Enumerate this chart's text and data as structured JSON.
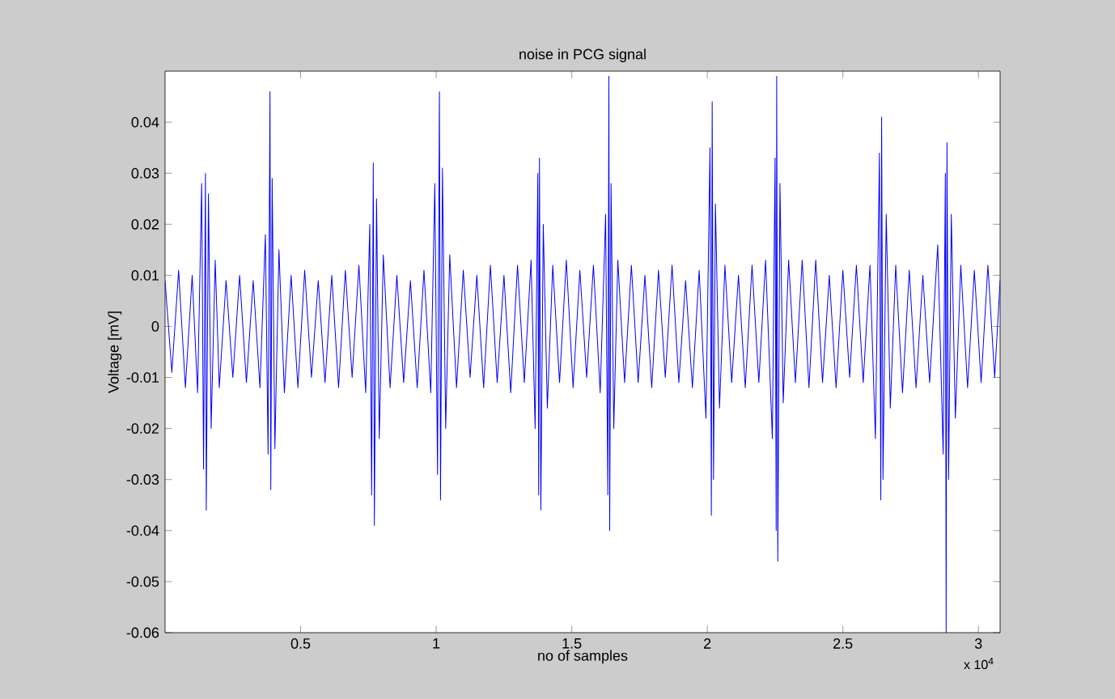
{
  "chart_data": {
    "type": "line",
    "title": "noise in PCG signal",
    "xlabel": "no of samples",
    "ylabel": "Voltage [mV]",
    "annotations": [
      "x 10$^{4}$"
    ],
    "xlim": [
      0,
      3.08
    ],
    "ylim": [
      -0.06,
      0.05
    ],
    "xticks": [
      0.5,
      1,
      1.5,
      2,
      2.5,
      3
    ],
    "yticks": [
      -0.06,
      -0.05,
      -0.04,
      -0.03,
      -0.02,
      -0.01,
      0,
      0.01,
      0.02,
      0.03,
      0.04
    ],
    "series": [
      {
        "color": "#0000ff",
        "x": [
          0,
          0.025,
          0.05,
          0.075,
          0.1,
          0.12,
          0.135,
          0.142,
          0.149,
          0.152,
          0.16,
          0.17,
          0.185,
          0.2,
          0.225,
          0.25,
          0.275,
          0.3,
          0.325,
          0.35,
          0.37,
          0.38,
          0.387,
          0.39,
          0.395,
          0.405,
          0.42,
          0.44,
          0.465,
          0.49,
          0.515,
          0.54,
          0.565,
          0.59,
          0.615,
          0.64,
          0.665,
          0.69,
          0.715,
          0.74,
          0.755,
          0.762,
          0.768,
          0.772,
          0.78,
          0.79,
          0.805,
          0.83,
          0.855,
          0.88,
          0.905,
          0.93,
          0.955,
          0.98,
          0.995,
          1.005,
          1.012,
          1.016,
          1.023,
          1.035,
          1.05,
          1.075,
          1.1,
          1.125,
          1.15,
          1.175,
          1.2,
          1.225,
          1.25,
          1.275,
          1.3,
          1.325,
          1.35,
          1.365,
          1.375,
          1.378,
          1.381,
          1.386,
          1.395,
          1.41,
          1.43,
          1.455,
          1.48,
          1.505,
          1.53,
          1.555,
          1.58,
          1.605,
          1.625,
          1.633,
          1.637,
          1.64,
          1.645,
          1.655,
          1.67,
          1.695,
          1.72,
          1.745,
          1.77,
          1.795,
          1.82,
          1.845,
          1.87,
          1.895,
          1.92,
          1.945,
          1.97,
          1.995,
          2.01,
          2.015,
          2.018,
          2.023,
          2.03,
          2.045,
          2.065,
          2.09,
          2.115,
          2.14,
          2.165,
          2.19,
          2.215,
          2.24,
          2.25,
          2.254,
          2.256,
          2.26,
          2.268,
          2.28,
          2.3,
          2.325,
          2.35,
          2.375,
          2.4,
          2.425,
          2.45,
          2.475,
          2.5,
          2.525,
          2.55,
          2.575,
          2.6,
          2.62,
          2.635,
          2.64,
          2.643,
          2.648,
          2.66,
          2.675,
          2.695,
          2.72,
          2.745,
          2.77,
          2.795,
          2.82,
          2.85,
          2.87,
          2.878,
          2.881,
          2.884,
          2.89,
          2.9,
          2.915,
          2.935,
          2.96,
          2.985,
          3.01,
          3.035,
          3.06,
          3.08
        ],
        "values": [
          0.009,
          -0.009,
          0.011,
          -0.012,
          0.01,
          -0.013,
          0.028,
          -0.028,
          0.03,
          -0.036,
          0.026,
          -0.02,
          0.013,
          -0.012,
          0.009,
          -0.01,
          0.01,
          -0.011,
          0.009,
          -0.012,
          0.018,
          -0.025,
          0.046,
          -0.032,
          0.029,
          -0.024,
          0.015,
          -0.013,
          0.01,
          -0.012,
          0.011,
          -0.01,
          0.009,
          -0.011,
          0.01,
          -0.012,
          0.011,
          -0.01,
          0.012,
          -0.013,
          0.02,
          -0.033,
          0.032,
          -0.039,
          0.025,
          -0.022,
          0.014,
          -0.012,
          0.01,
          -0.011,
          0.009,
          -0.012,
          0.011,
          -0.013,
          0.028,
          -0.029,
          0.046,
          -0.034,
          0.031,
          -0.02,
          0.014,
          -0.012,
          0.011,
          -0.01,
          0.01,
          -0.012,
          0.012,
          -0.011,
          0.01,
          -0.013,
          0.012,
          -0.011,
          0.013,
          -0.02,
          0.03,
          -0.033,
          0.033,
          -0.036,
          0.02,
          -0.016,
          0.012,
          -0.011,
          0.013,
          -0.012,
          0.011,
          -0.01,
          0.012,
          -0.013,
          0.022,
          -0.033,
          0.049,
          -0.04,
          0.028,
          -0.02,
          0.013,
          -0.011,
          0.012,
          -0.011,
          0.01,
          -0.012,
          0.011,
          -0.01,
          0.012,
          -0.011,
          0.009,
          -0.012,
          0.011,
          -0.018,
          0.035,
          -0.037,
          0.044,
          -0.03,
          0.024,
          -0.016,
          0.012,
          -0.011,
          0.01,
          -0.012,
          0.012,
          -0.011,
          0.013,
          -0.022,
          0.033,
          -0.04,
          0.049,
          -0.046,
          0.028,
          -0.015,
          0.013,
          -0.011,
          0.013,
          -0.012,
          0.013,
          -0.011,
          0.01,
          -0.012,
          0.011,
          -0.01,
          0.012,
          -0.011,
          0.012,
          -0.022,
          0.034,
          -0.034,
          0.041,
          -0.03,
          0.022,
          -0.016,
          0.012,
          -0.013,
          0.011,
          -0.012,
          0.01,
          -0.011,
          0.016,
          -0.025,
          0.03,
          -0.06,
          0.036,
          -0.03,
          0.022,
          -0.018,
          0.012,
          -0.012,
          0.011,
          -0.011,
          0.012,
          -0.01,
          0.009
        ]
      }
    ]
  }
}
